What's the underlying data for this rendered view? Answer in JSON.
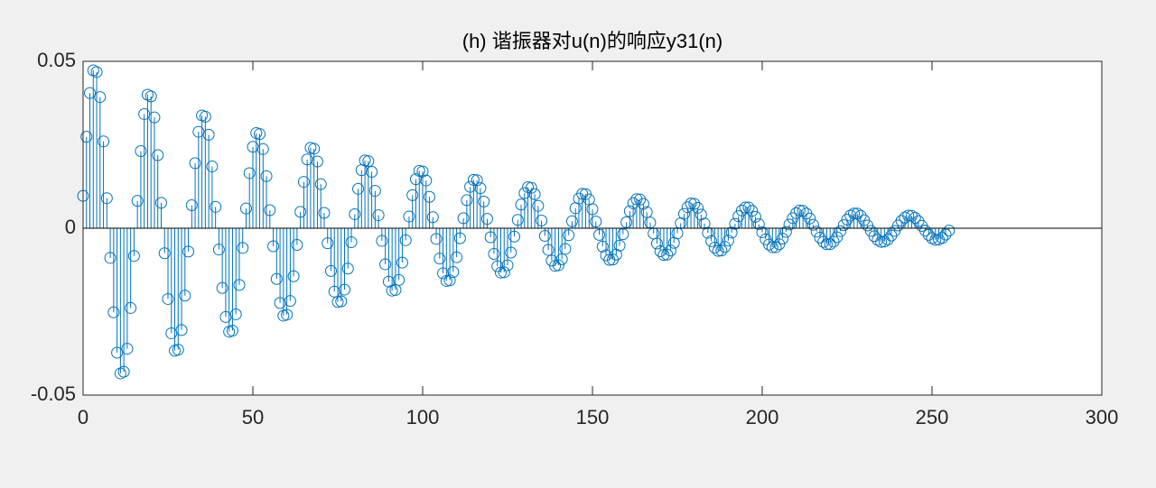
{
  "chart_data": {
    "type": "stem",
    "title": "(h) 谐振器对u(n)的响应y31(n)",
    "color": "#0072bd",
    "xlim": [
      0,
      300
    ],
    "ylim": [
      -0.05,
      0.05
    ],
    "xticks": [
      0,
      50,
      100,
      150,
      200,
      250,
      300
    ],
    "yticks": [
      -0.05,
      0,
      0.05
    ],
    "x": [
      0,
      1,
      2,
      3,
      4,
      5,
      6,
      7,
      8,
      9,
      10,
      11,
      12,
      13,
      14,
      15,
      16,
      17,
      18,
      19,
      20,
      21,
      22,
      23,
      24,
      25,
      26,
      27,
      28,
      29,
      30,
      31,
      32,
      33,
      34,
      35,
      36,
      37,
      38,
      39,
      40,
      41,
      42,
      43,
      44,
      45,
      46,
      47,
      48,
      49,
      50,
      51,
      52,
      53,
      54,
      55,
      56,
      57,
      58,
      59,
      60,
      61,
      62,
      63,
      64,
      65,
      66,
      67,
      68,
      69,
      70,
      71,
      72,
      73,
      74,
      75,
      76,
      77,
      78,
      79,
      80,
      81,
      82,
      83,
      84,
      85,
      86,
      87,
      88,
      89,
      90,
      91,
      92,
      93,
      94,
      95,
      96,
      97,
      98,
      99,
      100,
      101,
      102,
      103,
      104,
      105,
      106,
      107,
      108,
      109,
      110,
      111,
      112,
      113,
      114,
      115,
      116,
      117,
      118,
      119,
      120,
      121,
      122,
      123,
      124,
      125,
      126,
      127,
      128,
      129,
      130,
      131,
      132,
      133,
      134,
      135,
      136,
      137,
      138,
      139,
      140,
      141,
      142,
      143,
      144,
      145,
      146,
      147,
      148,
      149,
      150,
      151,
      152,
      153,
      154,
      155,
      156,
      157,
      158,
      159,
      160,
      161,
      162,
      163,
      164,
      165,
      166,
      167,
      168,
      169,
      170,
      171,
      172,
      173,
      174,
      175,
      176,
      177,
      178,
      179,
      180,
      181,
      182,
      183,
      184,
      185,
      186,
      187,
      188,
      189,
      190,
      191,
      192,
      193,
      194,
      195,
      196,
      197,
      198,
      199,
      200,
      201,
      202,
      203,
      204,
      205,
      206,
      207,
      208,
      209,
      210,
      211,
      212,
      213,
      214,
      215,
      216,
      217,
      218,
      219,
      220,
      221,
      222,
      223,
      224,
      225,
      226,
      227,
      228,
      229,
      230,
      231,
      232,
      233,
      234,
      235,
      236,
      237,
      238,
      239,
      240,
      241,
      242,
      243,
      244,
      245,
      246,
      247,
      248,
      249,
      250,
      251,
      252,
      253,
      254,
      255
    ],
    "values": [
      0.0097,
      0.0274,
      0.0405,
      0.0473,
      0.0468,
      0.0393,
      0.026,
      0.009,
      -0.0089,
      -0.0252,
      -0.0373,
      -0.0435,
      -0.043,
      -0.0361,
      -0.0239,
      -0.0083,
      0.0082,
      0.0231,
      0.0342,
      0.04,
      0.0395,
      0.0332,
      0.0219,
      0.0076,
      -0.0075,
      -0.0212,
      -0.0315,
      -0.0367,
      -0.0364,
      -0.0305,
      -0.0202,
      -0.007,
      0.0069,
      0.0195,
      0.0289,
      0.0338,
      0.0334,
      0.028,
      0.0185,
      0.0064,
      -0.0064,
      -0.0179,
      -0.0266,
      -0.031,
      -0.0307,
      -0.0258,
      -0.017,
      -0.0059,
      0.0059,
      0.0165,
      0.0244,
      0.0285,
      0.0282,
      0.0237,
      0.0156,
      0.0054,
      -0.0054,
      -0.0152,
      -0.0224,
      -0.0262,
      -0.0259,
      -0.0218,
      -0.0144,
      -0.005,
      0.0049,
      0.0139,
      0.0206,
      0.0241,
      0.0238,
      0.02,
      0.0132,
      0.0046,
      -0.0045,
      -0.0128,
      -0.019,
      -0.0221,
      -0.0219,
      -0.0184,
      -0.0121,
      -0.0042,
      0.0042,
      0.0118,
      0.0174,
      0.0203,
      0.0201,
      0.0169,
      0.0112,
      0.0039,
      -0.0038,
      -0.0108,
      -0.016,
      -0.0187,
      -0.0185,
      -0.0155,
      -0.0103,
      -0.0036,
      0.0035,
      0.0099,
      0.0147,
      0.0172,
      0.017,
      0.0143,
      0.0094,
      0.0033,
      -0.0032,
      -0.0091,
      -0.0135,
      -0.0158,
      -0.0156,
      -0.0131,
      -0.0087,
      -0.003,
      0.003,
      0.0084,
      0.0124,
      0.0145,
      0.0144,
      0.012,
      0.008,
      0.0028,
      -0.0027,
      -0.0077,
      -0.0114,
      -0.0133,
      -0.0132,
      -0.0111,
      -0.0073,
      -0.0025,
      0.0025,
      0.0071,
      0.0105,
      0.0123,
      0.0121,
      0.0102,
      0.0067,
      0.0023,
      -0.0023,
      -0.0065,
      -0.0097,
      -0.0113,
      -0.0111,
      -0.0093,
      -0.0062,
      -0.0021,
      0.0021,
      0.006,
      0.0089,
      0.0103,
      0.0102,
      0.0086,
      0.0057,
      0.002,
      -0.002,
      -0.0055,
      -0.0081,
      -0.0095,
      -0.0094,
      -0.0079,
      -0.0052,
      -0.0018,
      0.0018,
      0.0051,
      0.0075,
      0.0087,
      0.0086,
      0.0073,
      0.0048,
      0.0017,
      -0.0016,
      -0.0046,
      -0.0069,
      -0.008,
      -0.0079,
      -0.0067,
      -0.0044,
      -0.0015,
      0.0015,
      0.0043,
      0.0063,
      0.0074,
      0.0073,
      0.0061,
      0.0041,
      0.0014,
      -0.0014,
      -0.0039,
      -0.0058,
      -0.0068,
      -0.0067,
      -0.0056,
      -0.0037,
      -0.0013,
      0.0013,
      0.0036,
      0.0053,
      0.0062,
      0.0062,
      0.0052,
      0.0034,
      0.0012,
      -0.0012,
      -0.0033,
      -0.0049,
      -0.0057,
      -0.0057,
      -0.0048,
      -0.0031,
      -0.0011,
      0.0011,
      0.003,
      0.0045,
      0.0053,
      0.0052,
      0.0044,
      0.0029,
      0.001,
      -0.001,
      -0.0028,
      -0.0041,
      -0.0048,
      -0.0048,
      -0.004,
      -0.0027,
      -0.0009,
      0.0009,
      0.0026,
      0.0038,
      0.0044,
      0.0044,
      0.0037,
      0.0024,
      0.0008,
      -0.0008,
      -0.0024,
      -0.0035,
      -0.0041,
      -0.004,
      -0.0034,
      -0.0022,
      -0.0008,
      0.0008,
      0.0022,
      0.0032,
      0.0038,
      0.0037,
      0.0031,
      0.0021,
      0.0007,
      -0.0007,
      -0.002,
      -0.003,
      -0.0035,
      -0.0034,
      -0.0029,
      -0.0019,
      -0.0007
    ]
  }
}
